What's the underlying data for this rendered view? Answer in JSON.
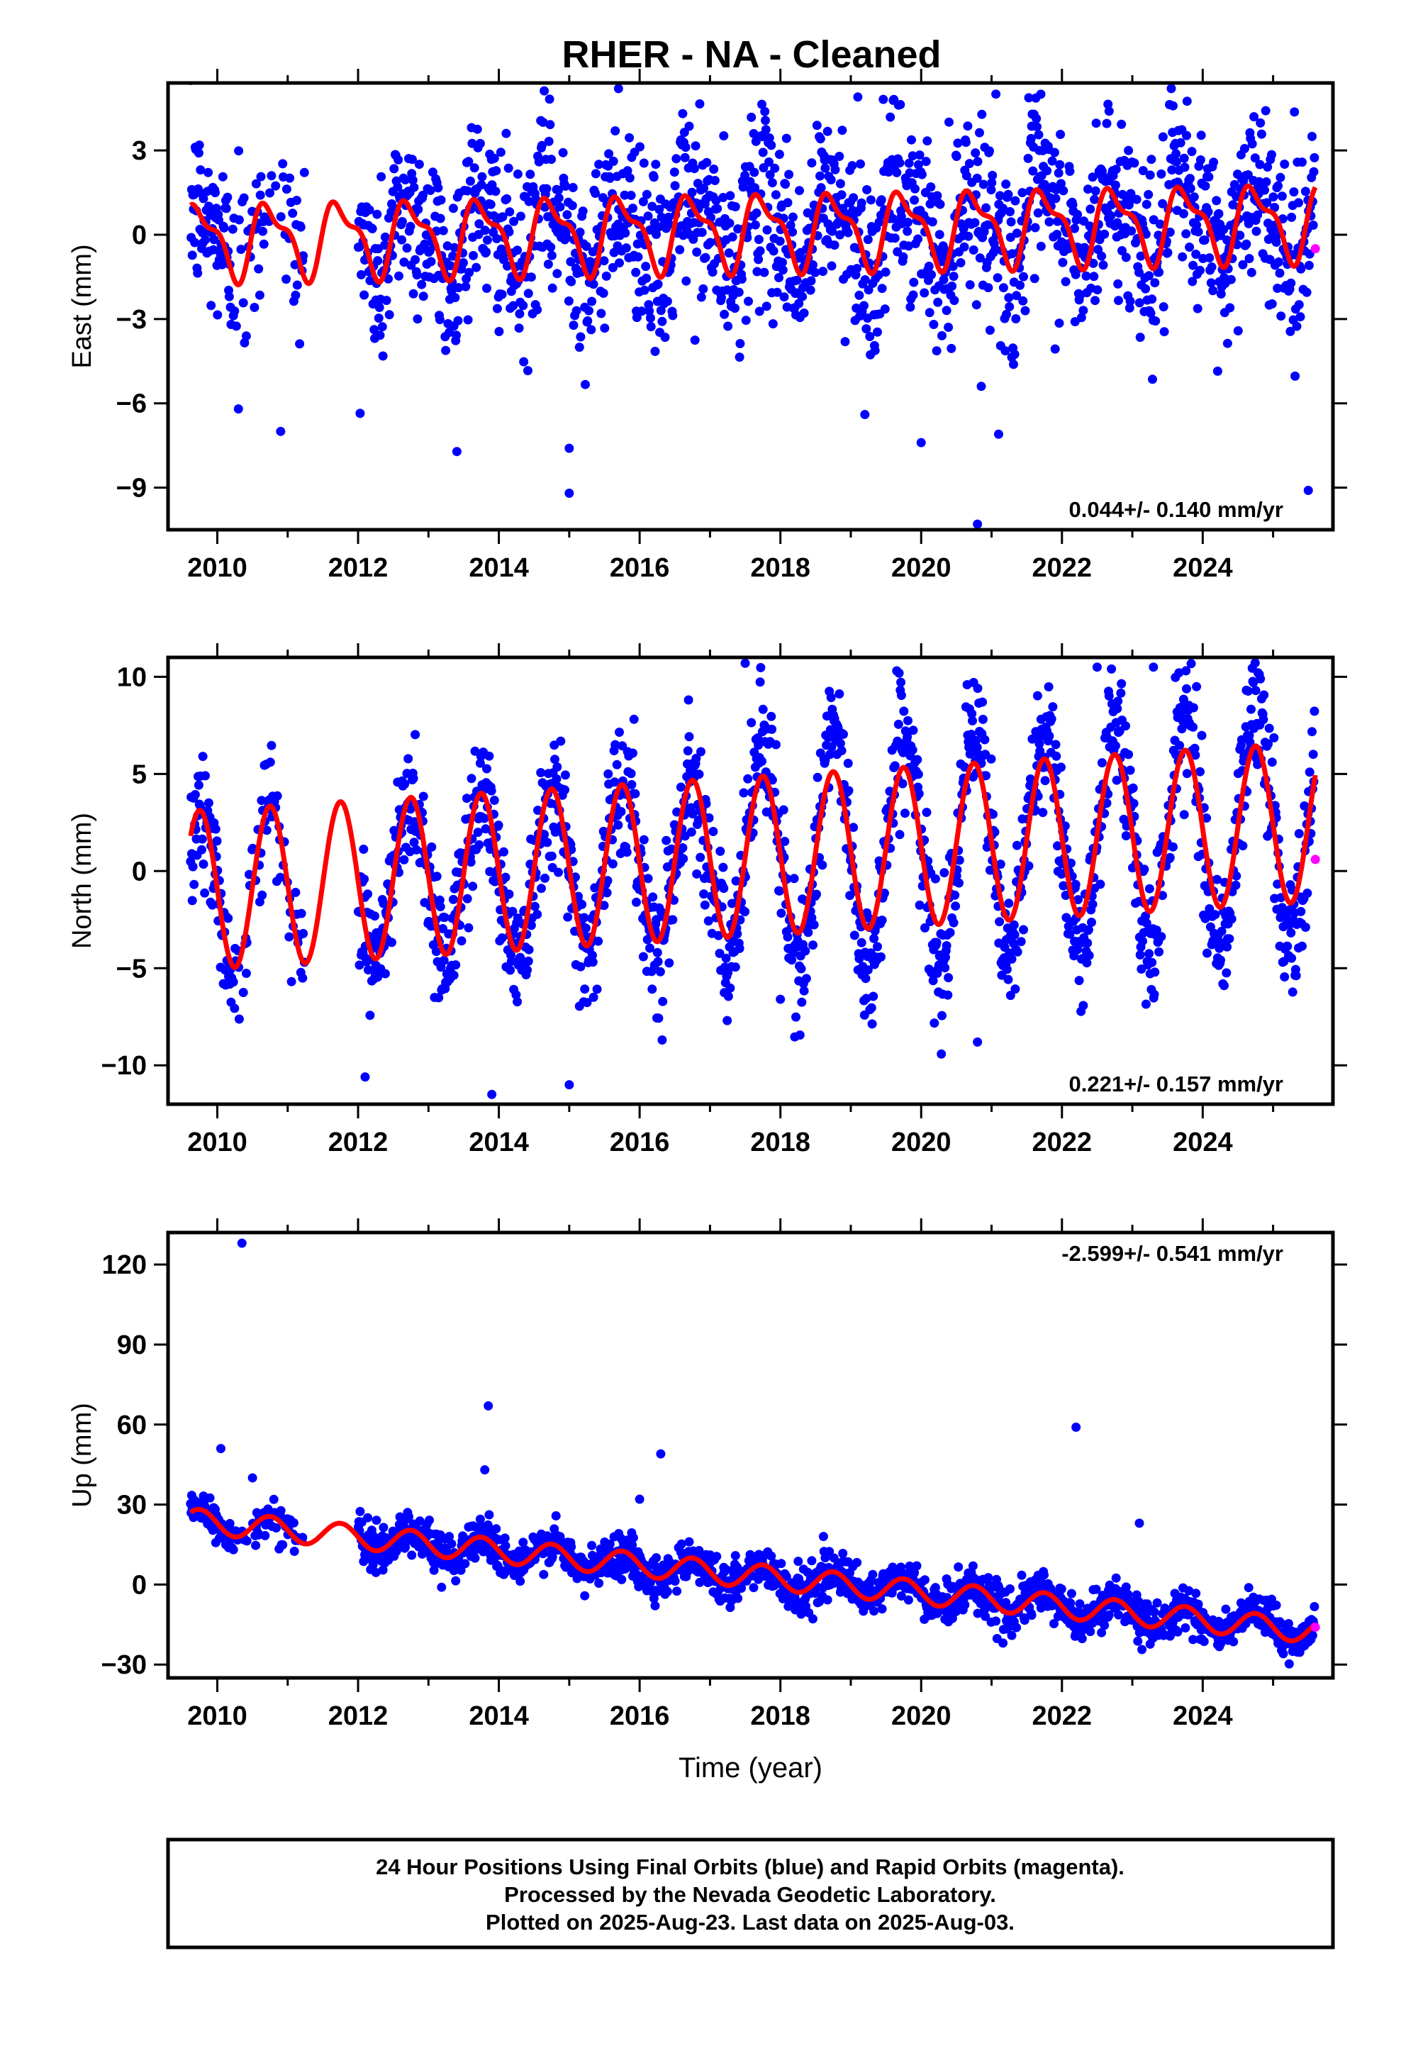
{
  "title": "RHER  - NA - Cleaned",
  "colors": {
    "final_orbits": "#0000ff",
    "rapid_orbits": "#ff00ff",
    "model": "#ff0000",
    "frame": "#000000"
  },
  "chart_data": [
    {
      "type": "scatter",
      "panel": "east",
      "ylabel": "East (mm)",
      "xlabel": "",
      "xlim": [
        2009.3,
        2025.85
      ],
      "ylim": [
        -10.5,
        5.4
      ],
      "xticks": [
        2010,
        2012,
        2014,
        2016,
        2018,
        2020,
        2022,
        2024
      ],
      "xtick_labels": [
        "2010",
        "2012",
        "2014",
        "2016",
        "2018",
        "2020",
        "2022",
        "2024"
      ],
      "yticks": [
        3,
        0,
        -3,
        -6,
        -9
      ],
      "ytick_labels": [
        "3",
        "0",
        "−3",
        "−6",
        "−9"
      ],
      "rate_label": "0.044+/- 0.140 mm/yr",
      "data_start": 2009.62,
      "data_end": 2025.59,
      "model": {
        "label": "seasonal fit",
        "mean_start": -0.2,
        "rate": 0.044,
        "annual_amp": 1.2,
        "semiannual_amp": 0.5,
        "extends_to": 2025.6
      },
      "scatter_spread": 1.6,
      "rapid_point": {
        "x": 2025.6,
        "y": -0.5
      },
      "outliers": [
        {
          "x": 2010.3,
          "y": -6.2
        },
        {
          "x": 2010.9,
          "y": -7.0
        },
        {
          "x": 2015.0,
          "y": -9.2
        },
        {
          "x": 2015.0,
          "y": -7.6
        },
        {
          "x": 2019.2,
          "y": -6.4
        },
        {
          "x": 2020.0,
          "y": -7.4
        },
        {
          "x": 2020.8,
          "y": -10.3
        },
        {
          "x": 2021.1,
          "y": -7.1
        },
        {
          "x": 2025.5,
          "y": -9.1
        },
        {
          "x": 2015.7,
          "y": 5.2
        },
        {
          "x": 2021.7,
          "y": 5.0
        },
        {
          "x": 2019.1,
          "y": 4.9
        }
      ]
    },
    {
      "type": "scatter",
      "panel": "north",
      "ylabel": "North (mm)",
      "xlabel": "",
      "xlim": [
        2009.3,
        2025.85
      ],
      "ylim": [
        -12.0,
        11.0
      ],
      "xticks": [
        2010,
        2012,
        2014,
        2016,
        2018,
        2020,
        2022,
        2024
      ],
      "xtick_labels": [
        "2010",
        "2012",
        "2014",
        "2016",
        "2018",
        "2020",
        "2022",
        "2024"
      ],
      "yticks": [
        10,
        5,
        0,
        -5,
        -10
      ],
      "ytick_labels": [
        "10",
        "5",
        "0",
        "−5",
        "−10"
      ],
      "rate_label": "0.221+/- 0.157 mm/yr",
      "data_start": 2009.62,
      "data_end": 2025.59,
      "model": {
        "label": "seasonal fit",
        "mean_start": -1.0,
        "rate": 0.221,
        "annual_amp": 4.1,
        "semiannual_amp": 0.0,
        "extends_to": 2025.6
      },
      "scatter_spread": 1.7,
      "rapid_point": {
        "x": 2025.6,
        "y": 0.6
      },
      "outliers": [
        {
          "x": 2017.5,
          "y": 10.7
        },
        {
          "x": 2022.5,
          "y": 10.5
        },
        {
          "x": 2023.3,
          "y": 10.5
        },
        {
          "x": 2013.9,
          "y": -11.5
        },
        {
          "x": 2015.0,
          "y": -11.0
        },
        {
          "x": 2012.1,
          "y": -10.6
        },
        {
          "x": 2020.8,
          "y": -8.8
        },
        {
          "x": 2018.0,
          "y": -6.6
        }
      ]
    },
    {
      "type": "scatter",
      "panel": "up",
      "ylabel": "Up (mm)",
      "xlabel": "Time (year)",
      "xlim": [
        2009.3,
        2025.85
      ],
      "ylim": [
        -35.0,
        132.0
      ],
      "xticks": [
        2010,
        2012,
        2014,
        2016,
        2018,
        2020,
        2022,
        2024
      ],
      "xtick_labels": [
        "2010",
        "2012",
        "2014",
        "2016",
        "2018",
        "2020",
        "2022",
        "2024"
      ],
      "yticks": [
        120,
        90,
        60,
        30,
        0,
        -30
      ],
      "ytick_labels": [
        "120",
        "90",
        "60",
        "30",
        "0",
        "−30"
      ],
      "rate_label": "-2.599+/- 0.541 mm/yr",
      "data_start": 2009.62,
      "data_end": 2025.59,
      "model": {
        "label": "seasonal fit",
        "mean_start": 24.0,
        "rate": -2.599,
        "annual_amp": 4.5,
        "semiannual_amp": 0.0,
        "extends_to": 2025.6
      },
      "scatter_spread": 4.0,
      "rapid_point": {
        "x": 2025.6,
        "y": -16
      },
      "outliers": [
        {
          "x": 2010.35,
          "y": 128
        },
        {
          "x": 2013.85,
          "y": 67
        },
        {
          "x": 2022.2,
          "y": 59
        },
        {
          "x": 2016.3,
          "y": 49
        },
        {
          "x": 2010.05,
          "y": 51
        },
        {
          "x": 2013.8,
          "y": 43
        },
        {
          "x": 2016.0,
          "y": 32
        },
        {
          "x": 2023.1,
          "y": 23
        },
        {
          "x": 2010.5,
          "y": 40
        }
      ]
    }
  ],
  "footer": {
    "line1": "24 Hour Positions Using Final Orbits (blue) and Rapid Orbits (magenta).",
    "line2": "Processed by the Nevada Geodetic Laboratory.",
    "line3": "Plotted on 2025-Aug-23. Last data on 2025-Aug-03."
  }
}
